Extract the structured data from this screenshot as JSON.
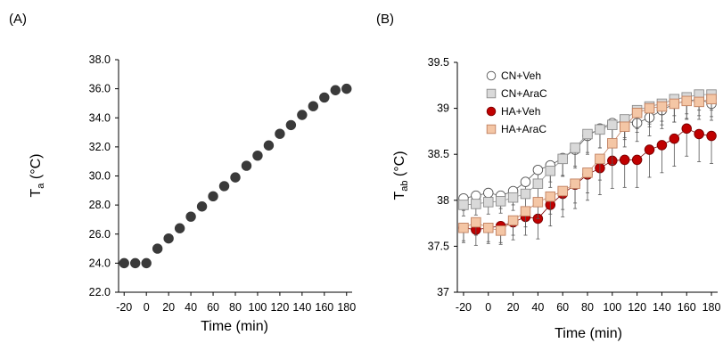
{
  "chart_data": [
    {
      "panel_label": "(A)",
      "type": "scatter",
      "xlabel": "Time (min)",
      "ylabel_main": "T",
      "ylabel_sub": "a",
      "ylabel_unit": " (°C)",
      "xlim": [
        -25,
        185
      ],
      "ylim": [
        22.0,
        38.0
      ],
      "x_ticks": [
        -20,
        0,
        20,
        40,
        60,
        80,
        100,
        120,
        140,
        160,
        180
      ],
      "y_ticks": [
        "22.0",
        "24.0",
        "26.0",
        "28.0",
        "30.0",
        "32.0",
        "34.0",
        "36.0",
        "38.0"
      ],
      "marker_color": "#3a3a3a",
      "series": [
        {
          "x": [
            -20,
            -10,
            0,
            10,
            20,
            30,
            40,
            50,
            60,
            70,
            80,
            90,
            100,
            110,
            120,
            130,
            140,
            150,
            160,
            170,
            180
          ],
          "y": [
            24.0,
            24.0,
            24.0,
            25.0,
            25.7,
            26.4,
            27.2,
            27.9,
            28.6,
            29.3,
            29.9,
            30.7,
            31.4,
            32.1,
            32.9,
            33.5,
            34.2,
            34.8,
            35.4,
            35.9,
            36.0
          ]
        }
      ]
    },
    {
      "panel_label": "(B)",
      "type": "line",
      "xlabel": "Time (min)",
      "ylabel_main": "T",
      "ylabel_sub": "ab",
      "ylabel_unit": " (°C)",
      "xlim": [
        -25,
        185
      ],
      "ylim": [
        37,
        39.5
      ],
      "x_ticks": [
        -20,
        0,
        20,
        40,
        60,
        80,
        100,
        120,
        140,
        160,
        180
      ],
      "y_ticks": [
        "37",
        "37.5",
        "38",
        "38.5",
        "39",
        "39.5"
      ],
      "legend_position": "top-left",
      "x": [
        -20,
        -10,
        0,
        10,
        20,
        30,
        40,
        50,
        60,
        70,
        80,
        90,
        100,
        110,
        120,
        130,
        140,
        150,
        160,
        170,
        180
      ],
      "series": [
        {
          "name": "CN+Veh",
          "marker": "circle",
          "fill": "#ffffff",
          "stroke": "#555555",
          "values": [
            38.02,
            38.05,
            38.08,
            38.05,
            38.1,
            38.2,
            38.33,
            38.38,
            38.46,
            38.55,
            38.7,
            38.78,
            38.84,
            38.86,
            38.84,
            38.9,
            38.98,
            39.05,
            39.08,
            39.1,
            39.05
          ],
          "errors": [
            0.13,
            0.13,
            0.14,
            0.14,
            0.15,
            0.16,
            0.18,
            0.18,
            0.19,
            0.2,
            0.2,
            0.21,
            0.21,
            0.2,
            0.2,
            0.2,
            0.2,
            0.2,
            0.19,
            0.18,
            0.18
          ]
        },
        {
          "name": "CN+AraC",
          "marker": "square",
          "fill": "#d9d9d9",
          "stroke": "#8c8c8c",
          "values": [
            37.95,
            37.96,
            37.98,
            37.99,
            38.03,
            38.07,
            38.18,
            38.32,
            38.45,
            38.57,
            38.72,
            38.77,
            38.82,
            38.88,
            38.98,
            39.02,
            39.05,
            39.1,
            39.12,
            39.15,
            39.15
          ],
          "errors": [
            0.12,
            0.12,
            0.13,
            0.13,
            0.14,
            0.15,
            0.17,
            0.18,
            0.19,
            0.2,
            0.2,
            0.2,
            0.2,
            0.2,
            0.2,
            0.19,
            0.19,
            0.18,
            0.18,
            0.17,
            0.17
          ]
        },
        {
          "name": "HA+Veh",
          "marker": "circle",
          "fill": "#c00000",
          "stroke": "#7a0000",
          "values": [
            37.7,
            37.68,
            37.7,
            37.72,
            37.76,
            37.82,
            37.8,
            37.95,
            38.07,
            38.17,
            38.28,
            38.35,
            38.43,
            38.44,
            38.44,
            38.55,
            38.6,
            38.67,
            38.78,
            38.72,
            38.7
          ],
          "errors": [
            0.16,
            0.17,
            0.17,
            0.18,
            0.19,
            0.2,
            0.22,
            0.23,
            0.25,
            0.26,
            0.28,
            0.29,
            0.3,
            0.3,
            0.3,
            0.3,
            0.3,
            0.3,
            0.3,
            0.3,
            0.3
          ]
        },
        {
          "name": "HA+AraC",
          "marker": "square",
          "fill": "#f4c6a5",
          "stroke": "#c08060",
          "values": [
            37.7,
            37.76,
            37.7,
            37.67,
            37.78,
            37.88,
            37.98,
            38.04,
            38.1,
            38.18,
            38.3,
            38.45,
            38.62,
            38.8,
            38.95,
            39.0,
            39.02,
            39.05,
            39.08,
            39.07,
            39.1
          ],
          "errors": [
            0.14,
            0.14,
            0.15,
            0.15,
            0.16,
            0.17,
            0.18,
            0.19,
            0.2,
            0.21,
            0.22,
            0.23,
            0.23,
            0.22,
            0.21,
            0.2,
            0.2,
            0.2,
            0.2,
            0.19,
            0.19
          ]
        }
      ]
    }
  ]
}
